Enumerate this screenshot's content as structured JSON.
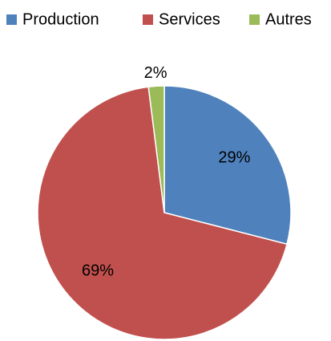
{
  "chart_data": {
    "type": "pie",
    "categories": [
      "Production",
      "Services",
      "Autres"
    ],
    "values": [
      29,
      69,
      2
    ],
    "value_labels": [
      "29%",
      "69%",
      "2%"
    ],
    "colors": [
      "#4f81bd",
      "#c0504d",
      "#9bbb59"
    ],
    "legend": "top"
  }
}
